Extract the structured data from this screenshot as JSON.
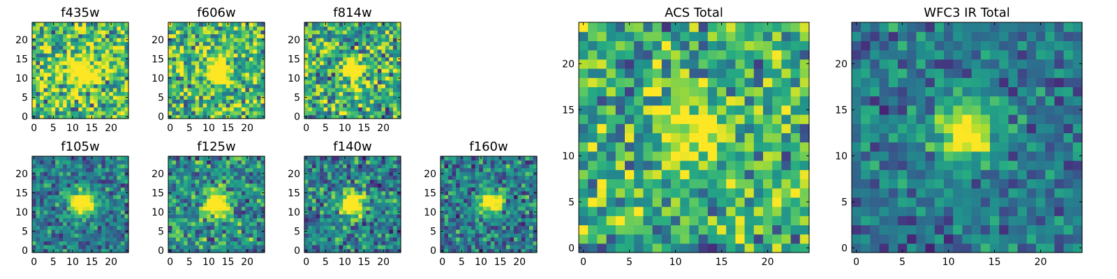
{
  "chart_data": [
    {
      "type": "heatmap",
      "title": "f435w",
      "grid_size": 25,
      "xticks": [
        "0",
        "5",
        "10",
        "15",
        "20"
      ],
      "yticks": [
        "0",
        "5",
        "10",
        "15",
        "20"
      ],
      "xlim": [
        0,
        25
      ],
      "ylim": [
        0,
        25
      ],
      "source_center": [
        12.5,
        12.5
      ],
      "source_radius": 2.5,
      "source_peak": 0.55,
      "noise": 0.55,
      "background": 0.72,
      "colormap": "viridis",
      "seed": 11
    },
    {
      "type": "heatmap",
      "title": "f606w",
      "grid_size": 25,
      "xticks": [
        "0",
        "5",
        "10",
        "15",
        "20"
      ],
      "yticks": [
        "0",
        "5",
        "10",
        "15",
        "20"
      ],
      "xlim": [
        0,
        25
      ],
      "ylim": [
        0,
        25
      ],
      "source_center": [
        12.5,
        12.5
      ],
      "source_radius": 2.0,
      "source_peak": 0.75,
      "noise": 0.5,
      "background": 0.68,
      "colormap": "viridis",
      "seed": 23
    },
    {
      "type": "heatmap",
      "title": "f814w",
      "grid_size": 25,
      "xticks": [
        "0",
        "5",
        "10",
        "15",
        "20"
      ],
      "yticks": [
        "0",
        "5",
        "10",
        "15",
        "20"
      ],
      "xlim": [
        0,
        25
      ],
      "ylim": [
        0,
        25
      ],
      "source_center": [
        12.5,
        12.5
      ],
      "source_radius": 2.0,
      "source_peak": 0.85,
      "noise": 0.55,
      "background": 0.62,
      "colormap": "viridis",
      "seed": 37
    },
    {
      "type": "heatmap",
      "title": "f105w",
      "grid_size": 25,
      "xticks": [
        "0",
        "5",
        "10",
        "15",
        "20"
      ],
      "yticks": [
        "0",
        "5",
        "10",
        "15",
        "20"
      ],
      "xlim": [
        0,
        25
      ],
      "ylim": [
        0,
        25
      ],
      "source_center": [
        13,
        13
      ],
      "source_radius": 2.2,
      "source_peak": 0.9,
      "noise": 0.35,
      "background": 0.42,
      "colormap": "viridis",
      "seed": 41
    },
    {
      "type": "heatmap",
      "title": "f125w",
      "grid_size": 25,
      "xticks": [
        "0",
        "5",
        "10",
        "15",
        "20"
      ],
      "yticks": [
        "0",
        "5",
        "10",
        "15",
        "20"
      ],
      "xlim": [
        0,
        25
      ],
      "ylim": [
        0,
        25
      ],
      "source_center": [
        12.5,
        12.5
      ],
      "source_radius": 2.2,
      "source_peak": 0.85,
      "noise": 0.45,
      "background": 0.5,
      "colormap": "viridis",
      "seed": 53
    },
    {
      "type": "heatmap",
      "title": "f140w",
      "grid_size": 25,
      "xticks": [
        "0",
        "5",
        "10",
        "15",
        "20"
      ],
      "yticks": [
        "0",
        "5",
        "10",
        "15",
        "20"
      ],
      "xlim": [
        0,
        25
      ],
      "ylim": [
        0,
        25
      ],
      "source_center": [
        12.5,
        12.5
      ],
      "source_radius": 2.2,
      "source_peak": 0.9,
      "noise": 0.4,
      "background": 0.45,
      "colormap": "viridis",
      "seed": 67
    },
    {
      "type": "heatmap",
      "title": "f160w",
      "grid_size": 25,
      "xticks": [
        "0",
        "5",
        "10",
        "15",
        "20"
      ],
      "yticks": [
        "0",
        "5",
        "10",
        "15",
        "20"
      ],
      "xlim": [
        0,
        25
      ],
      "ylim": [
        0,
        25
      ],
      "source_center": [
        13,
        13
      ],
      "source_radius": 2.0,
      "source_peak": 0.9,
      "noise": 0.4,
      "background": 0.42,
      "colormap": "viridis",
      "seed": 79
    },
    {
      "type": "heatmap",
      "title": "ACS Total",
      "grid_size": 25,
      "xticks": [
        "0",
        "5",
        "10",
        "15",
        "20"
      ],
      "yticks": [
        "0",
        "5",
        "10",
        "15",
        "20"
      ],
      "xlim": [
        0,
        25
      ],
      "ylim": [
        0,
        25
      ],
      "source_center": [
        12.5,
        13
      ],
      "source_radius": 2.5,
      "source_peak": 0.5,
      "noise": 0.5,
      "background": 0.62,
      "colormap": "viridis",
      "seed": 97
    },
    {
      "type": "heatmap",
      "title": "WFC3 IR Total",
      "grid_size": 25,
      "xticks": [
        "0",
        "5",
        "10",
        "15",
        "20"
      ],
      "yticks": [
        "0",
        "5",
        "10",
        "15",
        "20"
      ],
      "xlim": [
        0,
        25
      ],
      "ylim": [
        0,
        25
      ],
      "source_center": [
        12.5,
        13
      ],
      "source_radius": 2.2,
      "source_peak": 0.75,
      "noise": 0.32,
      "background": 0.4,
      "colormap": "viridis",
      "seed": 113
    }
  ]
}
